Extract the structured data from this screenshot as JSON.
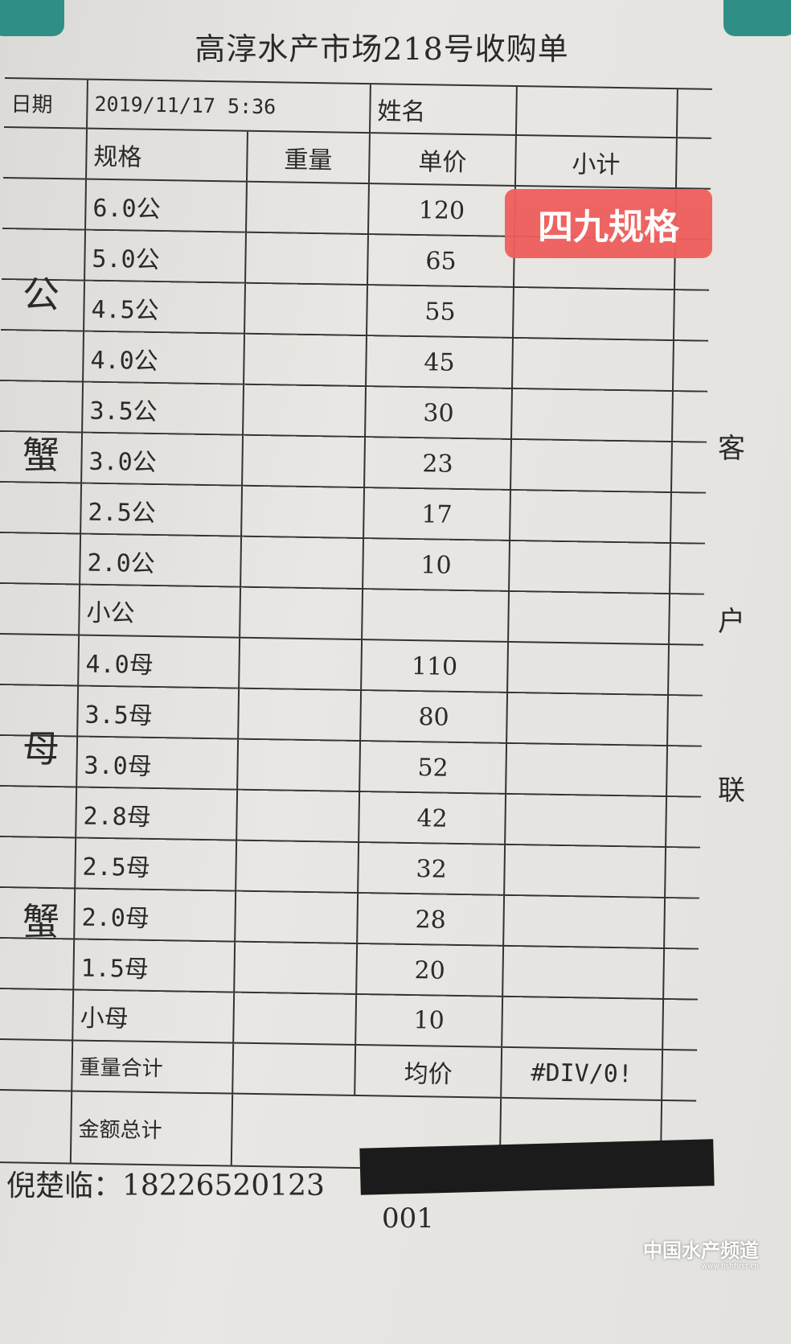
{
  "title": "高淳水产市场218号收购单",
  "date_label": "日期",
  "date_value": "2019/11/17 5:36",
  "name_label": "姓名",
  "headers": [
    "规格",
    "重量",
    "单价",
    "小计"
  ],
  "male_label": [
    "公",
    "蟹"
  ],
  "female_label": [
    "母",
    "蟹"
  ],
  "male_rows": [
    [
      "6.0公",
      "120"
    ],
    [
      "5.0公",
      "65"
    ],
    [
      "4.5公",
      "55"
    ],
    [
      "4.0公",
      "45"
    ],
    [
      "3.5公",
      "30"
    ],
    [
      "3.0公",
      "23"
    ],
    [
      "2.5公",
      "17"
    ],
    [
      "2.0公",
      "10"
    ],
    [
      "小公",
      ""
    ]
  ],
  "female_rows": [
    [
      "4.0母",
      "110"
    ],
    [
      "3.5母",
      "80"
    ],
    [
      "3.0母",
      "52"
    ],
    [
      "2.8母",
      "42"
    ],
    [
      "2.5母",
      "32"
    ],
    [
      "2.0母",
      "28"
    ],
    [
      "1.5母",
      "20"
    ],
    [
      "小母",
      "10"
    ]
  ],
  "weight_total_label": "重量合计",
  "avg_label": "均价",
  "avg_value": "#DIV/0!",
  "amount_total_label": "金额总计",
  "badge": "四九规格",
  "side_text": [
    "客",
    "户",
    "联"
  ],
  "contact": "倪楚临：18226520123",
  "serial": "001",
  "watermark": {
    "name": "中国水产频道",
    "url": "www.fishfirst.cn"
  },
  "colors": {
    "badge": "#ef5e5c",
    "clip": "#2f8f86",
    "redaction": "#1c1b1b"
  }
}
